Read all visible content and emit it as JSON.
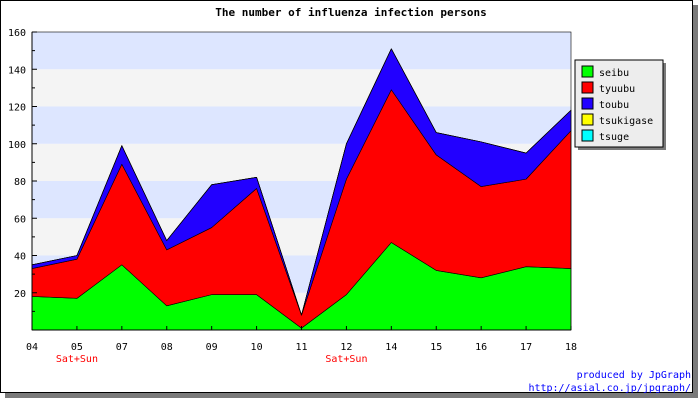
{
  "chart_data": {
    "type": "area",
    "stacked": true,
    "title": "The number of influenza infection persons",
    "xlabel": "",
    "ylabel": "",
    "categories": [
      "04",
      "05",
      "07",
      "08",
      "09",
      "10",
      "11",
      "12",
      "14",
      "15",
      "16",
      "17",
      "18"
    ],
    "ylim": [
      0,
      160
    ],
    "yticks": [
      20,
      40,
      60,
      80,
      100,
      120,
      140,
      160
    ],
    "grid": "horizontal bands",
    "legend_position": "right",
    "series": [
      {
        "name": "seibu",
        "color": "#00ff00",
        "values": [
          18,
          17,
          35,
          13,
          19,
          19,
          1,
          19,
          47,
          32,
          28,
          34,
          33
        ]
      },
      {
        "name": "tyuubu",
        "color": "#ff0000",
        "values": [
          15,
          21,
          54,
          30,
          36,
          57,
          7,
          62,
          82,
          62,
          49,
          47,
          74
        ]
      },
      {
        "name": "toubu",
        "color": "#2200ff",
        "values": [
          2,
          2,
          10,
          5,
          23,
          6,
          0,
          19,
          22,
          12,
          24,
          14,
          11
        ]
      },
      {
        "name": "tsukigase",
        "color": "#ffff00",
        "values": [
          0,
          0,
          0,
          0,
          0,
          0,
          0,
          0,
          0,
          0,
          0,
          0,
          0
        ]
      },
      {
        "name": "tsuge",
        "color": "#00ffff",
        "values": [
          0,
          0,
          0,
          0,
          0,
          0,
          0,
          0,
          0,
          0,
          0,
          0,
          0
        ]
      }
    ],
    "annotations": [
      {
        "category": "05",
        "text": "Sat+Sun"
      },
      {
        "category": "12",
        "text": "Sat+Sun"
      }
    ]
  },
  "credits": {
    "line1": "produced by JpGraph",
    "line2": "http://asial.co.jp/jpgraph/"
  },
  "colors": {
    "band_blue": "#dde6ff",
    "band_light": "#f4f4f4"
  }
}
